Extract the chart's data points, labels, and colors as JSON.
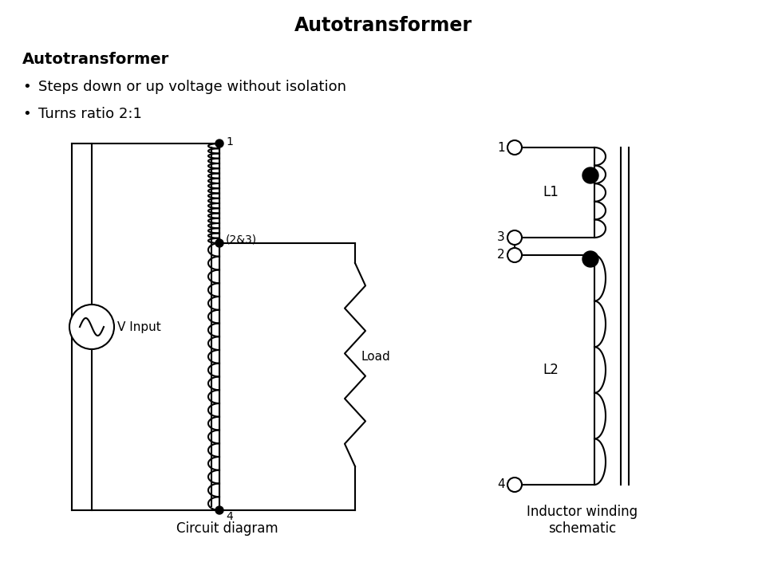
{
  "title": "Autotransformer",
  "subtitle": "Autotransformer",
  "bullets": [
    "Steps down or up voltage without isolation",
    "Turns ratio 2:1"
  ],
  "caption_left": "Circuit diagram",
  "caption_right": "Inductor winding\nschematic",
  "bg_color": "#ffffff",
  "line_color": "#000000"
}
